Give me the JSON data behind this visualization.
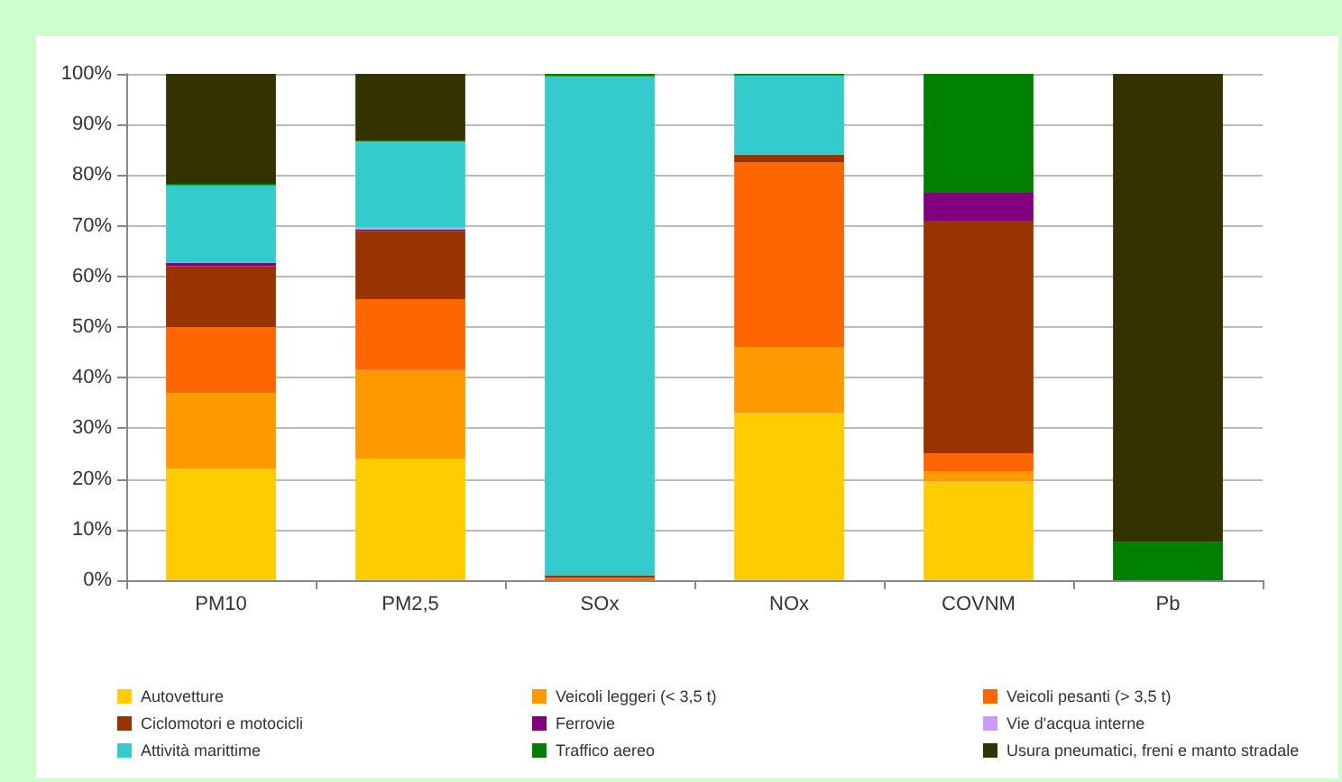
{
  "chart_data": {
    "type": "bar",
    "stacked": true,
    "categories": [
      "PM10",
      "PM2,5",
      "SOx",
      "NOx",
      "COVNM",
      "Pb"
    ],
    "ylim": [
      0,
      100
    ],
    "yticks": [
      {
        "value": 0,
        "label": "0%"
      },
      {
        "value": 10,
        "label": "10%"
      },
      {
        "value": 20,
        "label": "20%"
      },
      {
        "value": 30,
        "label": "30%"
      },
      {
        "value": 40,
        "label": "40%"
      },
      {
        "value": 50,
        "label": "50%"
      },
      {
        "value": 60,
        "label": "60%"
      },
      {
        "value": 70,
        "label": "70%"
      },
      {
        "value": 80,
        "label": "80%"
      },
      {
        "value": 90,
        "label": "90%"
      },
      {
        "value": 100,
        "label": "100%"
      }
    ],
    "grid": "y",
    "legend": "bottom",
    "series": [
      {
        "name": "Autovetture",
        "color": "#ffcc00",
        "values": [
          22,
          24,
          0,
          33,
          19.5,
          0
        ]
      },
      {
        "name": "Veicoli leggeri (< 3,5 t)",
        "color": "#ff9900",
        "values": [
          15,
          17.5,
          0,
          13,
          2,
          0
        ]
      },
      {
        "name": "Veicoli pesanti (> 3,5 t)",
        "color": "#ff6600",
        "values": [
          13,
          14,
          0.5,
          36.5,
          3.5,
          0
        ]
      },
      {
        "name": "Ciclomotori e motocicli",
        "color": "#993300",
        "values": [
          12,
          13.5,
          0.5,
          1.5,
          46,
          0
        ]
      },
      {
        "name": "Ferrovie",
        "color": "#800080",
        "values": [
          0.7,
          0.3,
          0,
          0,
          5.5,
          0
        ]
      },
      {
        "name": "Vie d'acqua interne",
        "color": "#cc99ff",
        "values": [
          0,
          0.3,
          0,
          0,
          0,
          0
        ]
      },
      {
        "name": "Attività marittime",
        "color": "#33cccc",
        "values": [
          15.3,
          17,
          98.5,
          15.7,
          0,
          0
        ]
      },
      {
        "name": "Traffico aereo",
        "color": "#008000",
        "values": [
          0.3,
          0.2,
          0.5,
          0.3,
          23.5,
          7.5
        ]
      },
      {
        "name": "Usura pneumatici, freni e manto stradale",
        "color": "#333300",
        "values": [
          21.7,
          13.2,
          0,
          0,
          0,
          92.5
        ]
      }
    ]
  }
}
